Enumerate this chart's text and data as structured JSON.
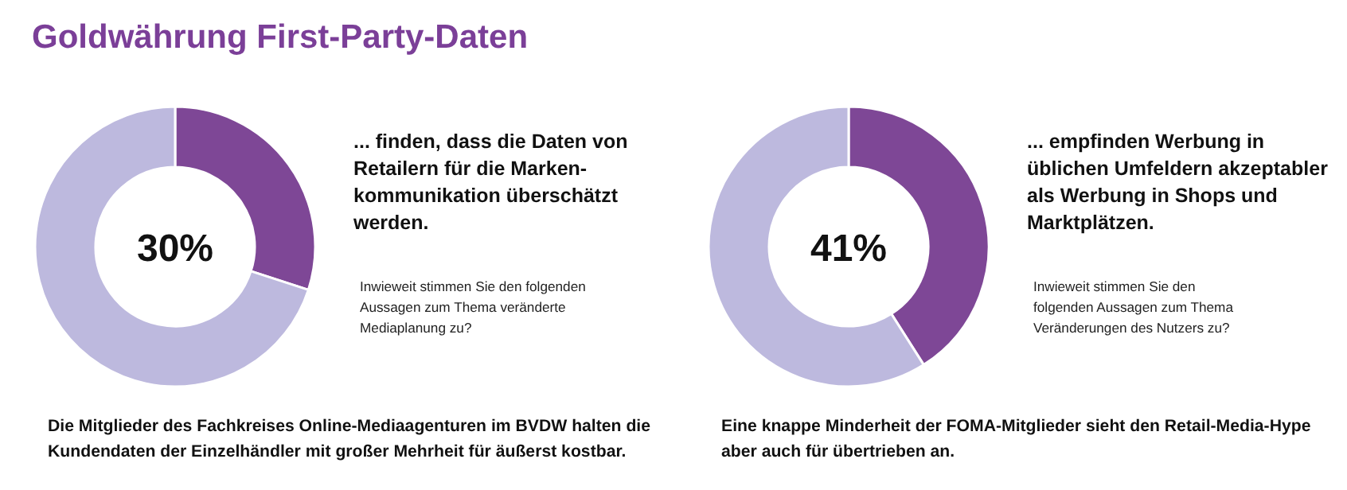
{
  "chart_data": [
    {
      "type": "donut",
      "title": "Goldwährung First-Party-Daten",
      "categories": [
        null,
        null
      ],
      "values": [
        30,
        70
      ],
      "colors": [
        "#7e4796",
        "#bdb9de"
      ],
      "annotations": [
        "30%",
        "... finden, dass die Daten von\nRetailern für die Marken-\nkommunikation überschätzt\nwerden.",
        "Inwieweit stimmen Sie den folgenden\nAussagen zum Thema veränderte\nMediaplanung zu?",
        "Die Mitglieder des Fachkreises Online-Mediaagenturen im BVDW halten die\nKundendaten der Einzelhändler mit großer Mehrheit für äußerst kostbar."
      ]
    },
    {
      "type": "donut",
      "categories": [
        null,
        null
      ],
      "values": [
        41,
        59
      ],
      "colors": [
        "#7e4796",
        "#bdb9de"
      ],
      "annotations": [
        "41%",
        "... empfinden Werbung in\nüblichen Umfeldern akzeptabler\nals Werbung in Shops und\nMarktplätzen.",
        "Inwieweit stimmen Sie den\nfolgenden Aussagen zum Thema\nVeränderungen des Nutzers zu?",
        "Eine knappe Minderheit der FOMA-Mitglieder sieht den Retail-Media-Hype\naber auch für übertrieben an."
      ]
    }
  ]
}
